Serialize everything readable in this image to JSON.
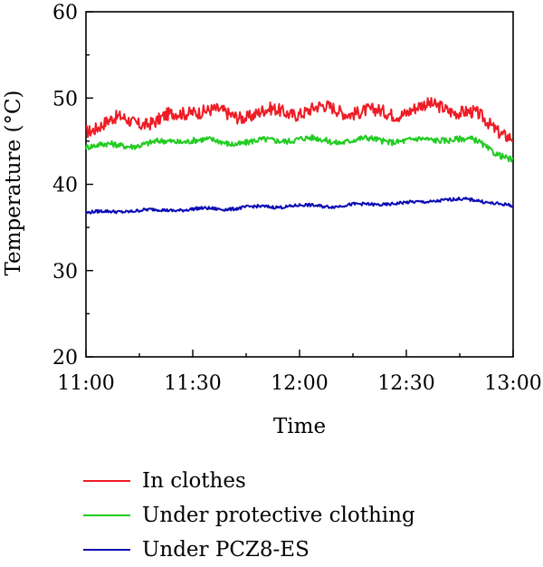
{
  "chart_data": {
    "type": "line",
    "title": "",
    "xlabel": "Time",
    "ylabel": "Temperature (°C)",
    "x": [
      "11:00",
      "11:10",
      "11:20",
      "11:30",
      "11:40",
      "11:50",
      "12:00",
      "12:10",
      "12:20",
      "12:30",
      "12:40",
      "12:50",
      "13:00"
    ],
    "x_ticks": [
      "11:00",
      "11:30",
      "12:00",
      "12:30",
      "13:00"
    ],
    "ylim": [
      20,
      60
    ],
    "y_ticks": [
      20,
      30,
      40,
      50,
      60
    ],
    "grid": false,
    "legend_position": "bottom",
    "series": [
      {
        "name": "In clothes",
        "color": "#ee1c25",
        "values": [
          46.5,
          47.5,
          47.2,
          48.8,
          48.0,
          48.3,
          48.5,
          48.8,
          48.2,
          48.5,
          49.2,
          47.8,
          45.5
        ]
      },
      {
        "name": "Under protective clothing",
        "color": "#22cc22",
        "values": [
          44.5,
          44.5,
          44.8,
          45.2,
          44.8,
          45.0,
          45.3,
          45.0,
          45.2,
          45.0,
          45.3,
          45.0,
          42.6
        ]
      },
      {
        "name": "Under PCZ8-ES",
        "color": "#0a0ab4",
        "values": [
          36.7,
          36.9,
          37.0,
          37.1,
          37.2,
          37.4,
          37.5,
          37.5,
          37.7,
          37.8,
          38.2,
          38.2,
          37.4
        ]
      }
    ]
  }
}
